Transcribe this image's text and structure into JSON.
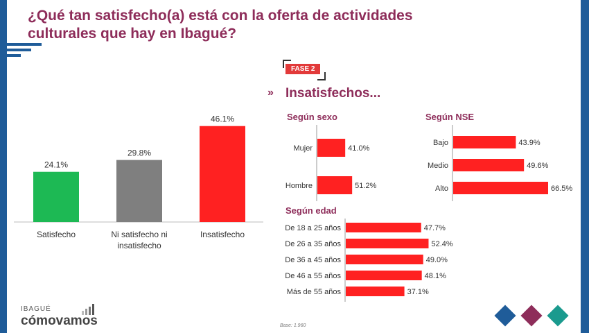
{
  "title": "¿Qué tan satisfecho(a) está con la oferta de actividades culturales que hay en Ibagué?",
  "badge": "FASE 2",
  "subheading": "Insatisfechos...",
  "base_note": "Base: 1.960",
  "logo": {
    "small": "IBAGUÉ",
    "big": "cómovamos"
  },
  "colors": {
    "accent": "#8e2d5a",
    "navy": "#1f5c99",
    "red": "#ff2121",
    "green": "#1db954",
    "grey": "#7f7f7f",
    "teal": "#1a9a8e"
  },
  "chart_data": [
    {
      "type": "bar",
      "categories": [
        "Satisfecho",
        "Ni satisfecho ni insatisfecho",
        "Insatisfecho"
      ],
      "values": [
        24.1,
        29.8,
        46.1
      ],
      "labels": [
        "24.1%",
        "29.8%",
        "46.1%"
      ],
      "colors": [
        "#1db954",
        "#7f7f7f",
        "#ff2121"
      ],
      "ylim": [
        0,
        50
      ]
    },
    {
      "type": "bar",
      "orientation": "horizontal",
      "title": "Según sexo",
      "categories": [
        "Mujer",
        "Hombre"
      ],
      "values": [
        41.0,
        51.2
      ],
      "labels": [
        "41.0%",
        "51.2%"
      ]
    },
    {
      "type": "bar",
      "orientation": "horizontal",
      "title": "Según NSE",
      "categories": [
        "Bajo",
        "Medio",
        "Alto"
      ],
      "values": [
        43.9,
        49.6,
        66.5
      ],
      "labels": [
        "43.9%",
        "49.6%",
        "66.5%"
      ]
    },
    {
      "type": "bar",
      "orientation": "horizontal",
      "title": "Según edad",
      "categories": [
        "De 18 a 25 años",
        "De 26 a 35 años",
        "De 36 a 45 años",
        "De 46 a 55 años",
        "Más de 55 años"
      ],
      "values": [
        47.7,
        52.4,
        49.0,
        48.1,
        37.1
      ],
      "labels": [
        "47.7%",
        "52.4%",
        "49.0%",
        "48.1%",
        "37.1%"
      ]
    }
  ]
}
